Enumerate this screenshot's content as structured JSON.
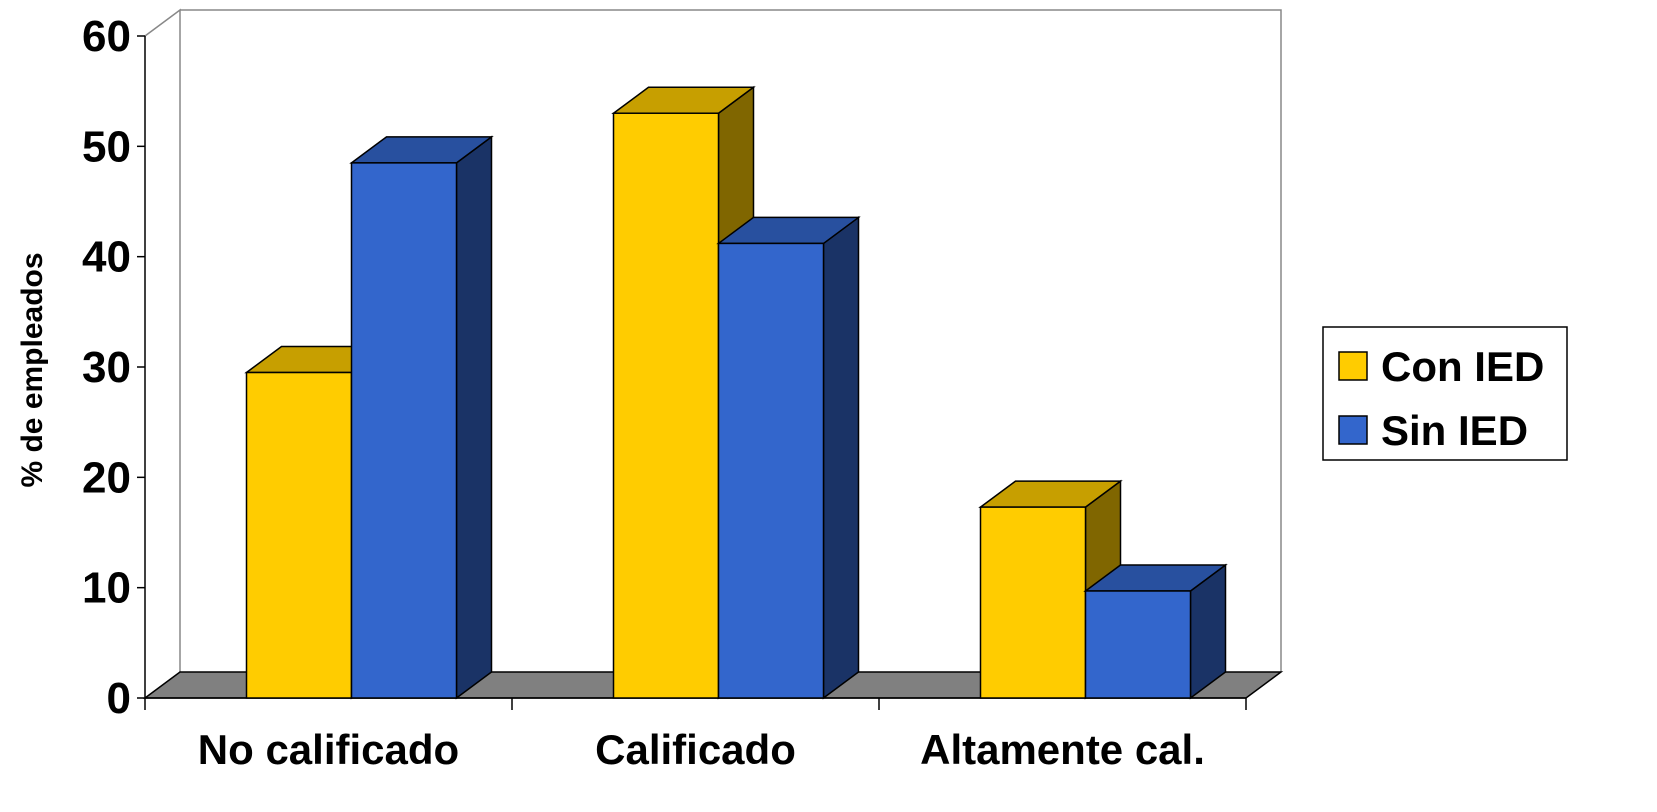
{
  "chart_data": {
    "type": "bar",
    "title": "",
    "xlabel": "",
    "ylabel": "% de empleados",
    "categories": [
      "No calificado",
      "Calificado",
      "Altamente cal."
    ],
    "series": [
      {
        "name": "Con IED",
        "values": [
          29.5,
          53.0,
          17.3
        ],
        "color": "#FFCC00"
      },
      {
        "name": "Sin IED",
        "values": [
          48.5,
          41.2,
          9.7
        ],
        "color": "#3366CC"
      }
    ],
    "ylim": [
      0,
      60
    ],
    "yticks": [
      "0",
      "10",
      "20",
      "30",
      "40",
      "50",
      "60"
    ],
    "grid": false,
    "style": "3d-clustered-column",
    "floor_color": "#808080",
    "legend_position": "right"
  }
}
